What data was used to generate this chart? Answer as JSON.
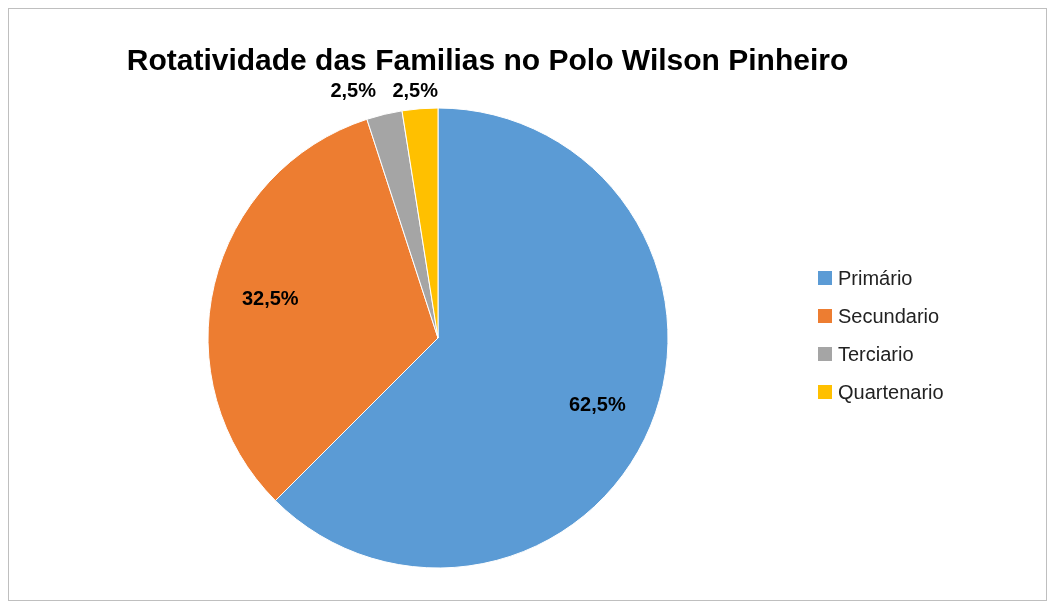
{
  "chart_data": {
    "type": "pie",
    "title": "Rotatividade das Familias no Polo Wilson Pinheiro",
    "categories": [
      "Primário",
      "Secundario",
      "Terciario",
      "Quartenario"
    ],
    "values": [
      62.5,
      32.5,
      2.5,
      2.5
    ],
    "colors": [
      "#5b9bd5",
      "#ed7d31",
      "#a5a5a5",
      "#ffc000"
    ],
    "value_labels": [
      "62,5%",
      "32,5%",
      "2,5%",
      "2,5%"
    ],
    "legend": "right"
  }
}
